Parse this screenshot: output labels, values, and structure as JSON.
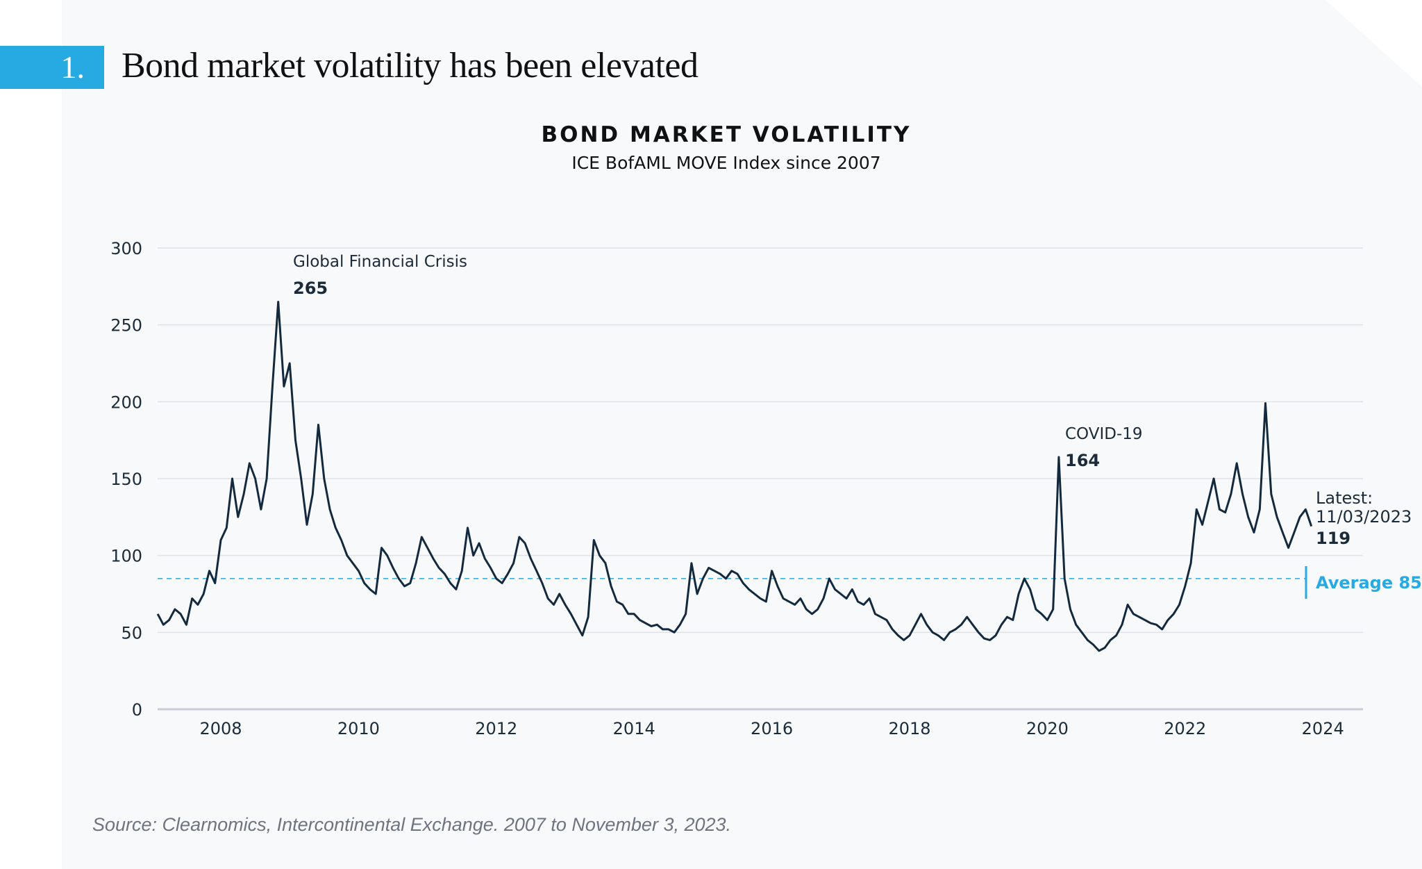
{
  "header": {
    "number": "1.",
    "title": "Bond market volatility has been elevated",
    "accent_color": "#27aae1"
  },
  "chart_data": {
    "type": "line",
    "title": "BOND MARKET VOLATILITY",
    "subtitle": "ICE BofAML MOVE Index since 2007",
    "xlabel": "",
    "ylabel": "",
    "ylim": [
      0,
      300
    ],
    "xlim": [
      2007,
      2024.2
    ],
    "yticks": [
      "0",
      "50",
      "100",
      "150",
      "200",
      "250",
      "300"
    ],
    "xticks": [
      "2008",
      "2010",
      "2012",
      "2014",
      "2016",
      "2018",
      "2020",
      "2022",
      "2024"
    ],
    "grid": true,
    "line_color": "#13293d",
    "average": {
      "value": 85,
      "label": "Average 85",
      "color": "#27aae1"
    },
    "annotations": [
      {
        "label": "Global Financial Crisis",
        "value": "265"
      },
      {
        "label": "COVID-19",
        "value": "164"
      },
      {
        "label": "Latest:",
        "date": "11/03/2023",
        "value": "119"
      }
    ],
    "series": [
      {
        "start": "2007-02",
        "values": [
          62,
          55,
          58,
          65,
          62,
          55,
          72,
          68,
          75,
          90,
          82,
          110,
          118,
          150,
          125,
          140,
          160,
          150,
          130,
          150,
          210,
          265,
          210,
          225,
          175,
          150,
          120,
          140,
          185,
          150,
          130,
          118,
          110,
          100,
          95,
          90,
          82,
          78,
          75,
          105,
          100,
          92,
          85,
          80,
          82,
          95,
          112,
          105,
          98,
          92,
          88,
          82,
          78,
          90,
          118,
          100,
          108,
          98,
          92,
          85,
          82,
          88,
          95,
          112,
          108,
          98,
          90,
          82,
          72,
          68,
          75,
          68,
          62,
          55,
          48,
          60,
          110,
          100,
          95,
          80,
          70,
          68,
          62,
          62,
          58,
          56,
          54,
          55,
          52,
          52,
          50,
          55,
          62,
          95,
          75,
          85,
          92,
          90,
          88,
          85,
          90,
          88,
          82,
          78,
          75,
          72,
          70,
          90,
          80,
          72,
          70,
          68,
          72,
          65,
          62,
          65,
          72,
          85,
          78,
          75,
          72,
          78,
          70,
          68,
          72,
          62,
          60,
          58,
          52,
          48,
          45,
          48,
          55,
          62,
          55,
          50,
          48,
          45,
          50,
          52,
          55,
          60,
          55,
          50,
          46,
          45,
          48,
          55,
          60,
          58,
          75,
          85,
          78,
          65,
          62,
          58,
          65,
          164,
          85,
          65,
          55,
          50,
          45,
          42,
          38,
          40,
          45,
          48,
          55,
          68,
          62,
          60,
          58,
          56,
          55,
          52,
          58,
          62,
          68,
          80,
          95,
          130,
          120,
          135,
          150,
          130,
          128,
          140,
          160,
          140,
          125,
          115,
          130,
          199,
          140,
          125,
          115,
          105,
          115,
          125,
          130,
          119
        ]
      }
    ]
  },
  "source": "Source: Clearnomics, Intercontinental Exchange. 2007 to November 3, 2023."
}
